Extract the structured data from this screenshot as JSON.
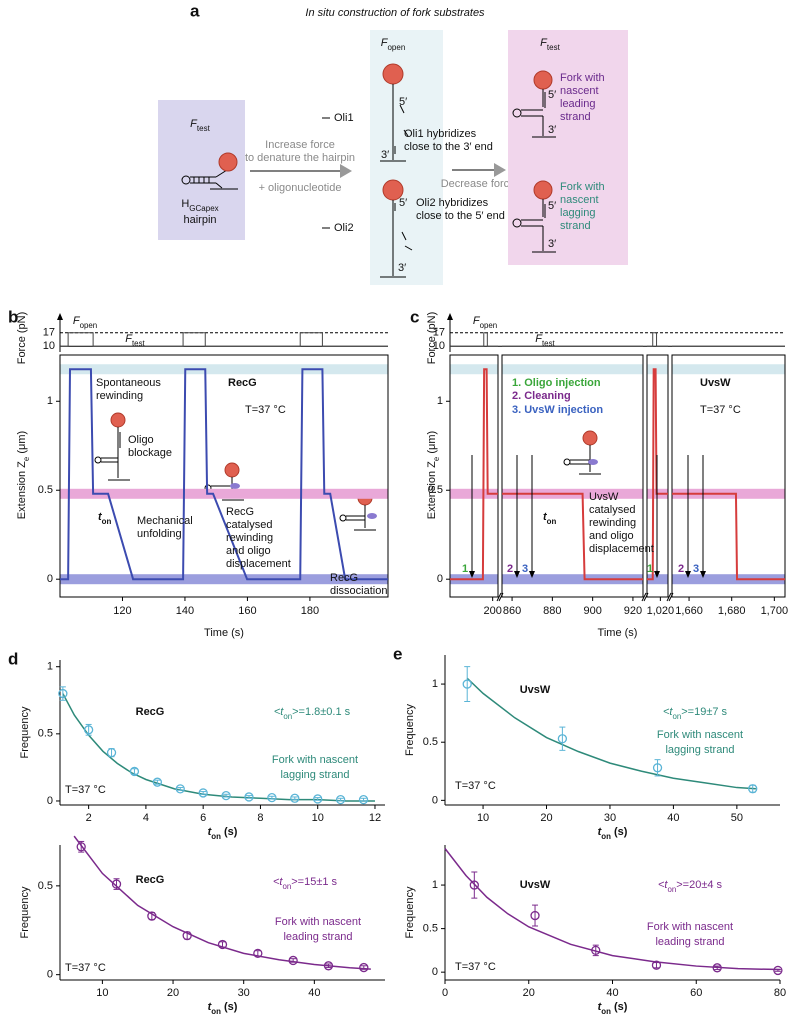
{
  "diagram": {
    "label": "a",
    "title": "In situ construction of fork substrates",
    "box1": {
      "force": {
        "pre": "F",
        "sub": "test"
      },
      "hairpin": {
        "pre": "H",
        "sub": "GCapex"
      },
      "hairpin2": "hairpin"
    },
    "arrow1": [
      "Increase force",
      "to denature the hairpin",
      "+ oligonucleotide"
    ],
    "oli1": "Oli1",
    "oli2": "Oli2",
    "box2": {
      "force": {
        "pre": "F",
        "sub": "open"
      },
      "top5": "5′",
      "top3": "3′",
      "note1": [
        "Oli1 hybridizes",
        "close to the 3′ end"
      ],
      "bot5": "5′",
      "note2": [
        "Oli2 hybridizes",
        "close to the 5′ end"
      ],
      "bot3": "3′"
    },
    "arrow2": "Decrease force",
    "box3": {
      "force": {
        "pre": "F",
        "sub": "test"
      },
      "top5": "5′",
      "top3": "3′",
      "lead": [
        "Fork with",
        "nascent",
        "leading",
        "strand"
      ],
      "bot5": "5′",
      "bot3": "3′",
      "lag": [
        "Fork with",
        "nascent",
        "lagging",
        "strand"
      ]
    }
  },
  "chart_data": [
    {
      "type": "trace",
      "panel": "b",
      "color": "#3c4bb0",
      "force_color": "#444444",
      "force_label": "Force (pN)",
      "ylabel": {
        "pre": "Extension Z",
        "sub": "e",
        "post": " (μm)"
      },
      "xlabel": "Time (s)",
      "ylim": [
        -0.1,
        1.26
      ],
      "yticks": [
        0,
        0.5,
        1
      ],
      "force": {
        "ylim": [
          7,
          21
        ],
        "yticks": [
          10,
          17
        ]
      },
      "bands": [
        {
          "y": 1.18,
          "color": "#d4e8ee"
        },
        {
          "y": 0.48,
          "color": "#e9a8d8"
        },
        {
          "y": 0,
          "color": "#9b9ede"
        }
      ],
      "segments": [
        {
          "xlim": [
            100,
            205
          ],
          "xticks": [
            120,
            140,
            160,
            180
          ],
          "x": [
            100,
            102.6,
            103.2,
            109.9,
            110.6,
            115.4,
            123.4,
            139.4,
            140.1,
            146.5,
            147.1,
            149.0,
            159.9,
            176.9,
            177.6,
            184.0,
            184.6,
            186.5,
            191.3,
            205
          ],
          "values": [
            0,
            0,
            1.18,
            1.18,
            0.48,
            0.48,
            0,
            0,
            1.18,
            1.18,
            0.48,
            0.48,
            0,
            0,
            1.18,
            1.18,
            0.48,
            0.48,
            0,
            0
          ],
          "force_x": [
            100,
            102.6,
            102.6,
            110.6,
            110.6,
            139.4,
            139.4,
            146.5,
            146.5,
            176.9,
            176.9,
            184.0,
            184.0,
            205
          ],
          "force": [
            10,
            10,
            17,
            17,
            10,
            10,
            17,
            17,
            10,
            10,
            17,
            17,
            10,
            10
          ]
        }
      ],
      "annotations": [
        {
          "pre": "F",
          "sub": "open"
        },
        {
          "pre": "F",
          "sub": "test"
        },
        "Spontaneous",
        "rewinding",
        "RecG",
        "T=37 °C",
        "Oligo",
        "blockage",
        {
          "pre": "t",
          "sub": "on"
        },
        "Mechanical",
        "unfolding",
        "RecG",
        "catalysed",
        "rewinding",
        "and oligo",
        "displacement",
        "RecG",
        "dissociation"
      ]
    },
    {
      "type": "trace",
      "panel": "c",
      "color": "#d63c3c",
      "force_color": "#444444",
      "force_label": "Force (pN)",
      "ylabel": {
        "pre": "Extension Z",
        "sub": "e",
        "post": " (μm)"
      },
      "xlabel": "Time (s)",
      "ylim": [
        -0.1,
        1.26
      ],
      "yticks": [
        0,
        0.5,
        1
      ],
      "force": {
        "ylim": [
          7,
          21
        ],
        "yticks": [
          10,
          17
        ]
      },
      "bands": [
        {
          "y": 1.18,
          "color": "#d4e8ee"
        },
        {
          "y": 0.48,
          "color": "#e9a8d8"
        },
        {
          "y": 0,
          "color": "#9b9ede"
        }
      ],
      "segments": [
        {
          "xlim": [
            176,
            203
          ],
          "xticks": [
            200
          ],
          "x": [
            176,
            194.5,
            195.2,
            196.6,
            197.2,
            203
          ],
          "values": [
            0,
            0,
            1.18,
            1.18,
            0.48,
            0.48
          ],
          "force_x": [
            176,
            195,
            195,
            197,
            197,
            203
          ],
          "force": [
            10,
            10,
            17,
            17,
            10,
            10
          ]
        },
        {
          "xlim": [
            855,
            925
          ],
          "xticks": [
            860,
            880,
            900,
            920
          ],
          "x": [
            855,
            895,
            896,
            925
          ],
          "values": [
            0.48,
            0.48,
            0,
            0
          ],
          "force_x": [
            855,
            925
          ],
          "force": [
            10,
            10
          ]
        },
        {
          "xlim": [
            1013,
            1024
          ],
          "xticks": [
            {
              "value": 1020,
              "label": "1,020"
            }
          ],
          "x": [
            1013,
            1016,
            1016.5,
            1017.5,
            1018,
            1024
          ],
          "values": [
            0,
            0,
            1.18,
            1.18,
            0.48,
            0.48
          ],
          "force_x": [
            1013,
            1016,
            1016,
            1018,
            1018,
            1024
          ],
          "force": [
            10,
            10,
            17,
            17,
            10,
            10
          ]
        },
        {
          "xlim": [
            1652,
            1705
          ],
          "xticks": [
            {
              "value": 1660,
              "label": "1,660"
            },
            {
              "value": 1680,
              "label": "1,680"
            },
            {
              "value": 1700,
              "label": "1,700"
            }
          ],
          "x": [
            1652,
            1682,
            1682.5,
            1705
          ],
          "values": [
            0.48,
            0.48,
            0,
            0
          ],
          "force_x": [
            1652,
            1705
          ],
          "force": [
            10,
            10
          ]
        }
      ],
      "events": [
        {
          "label": "1",
          "color": "#3aa63a"
        },
        {
          "label": "2",
          "color": "#7b2a8c"
        },
        {
          "label": "3",
          "color": "#3a62c0"
        },
        {
          "label": "1",
          "color": "#3aa63a"
        },
        {
          "label": "2",
          "color": "#7b2a8c"
        },
        {
          "label": "3",
          "color": "#3a62c0"
        }
      ],
      "annotations": [
        {
          "pre": "F",
          "sub": "open"
        },
        {
          "pre": "F",
          "sub": "test"
        },
        "1. Oligo injection",
        "2. Cleaning",
        "3. UvsW injection",
        "UvsW",
        "T=37 °C",
        {
          "pre": "t",
          "sub": "on"
        },
        "UvsW",
        "catalysed",
        "rewinding",
        "and oligo",
        "displacement"
      ]
    },
    {
      "type": "scatter-fit",
      "panel": "d",
      "name": "RecG",
      "tau": {
        "pre": "<t",
        "sub": "on",
        "post": ">=1.8±0.1 s"
      },
      "fork": [
        "Fork with nascent",
        "lagging strand"
      ],
      "temp": "T=37 °C",
      "xlabel": {
        "pre": "t",
        "sub": "on",
        "post": " (s)"
      },
      "ylabel": "Frequency",
      "color": "#5ab4d6",
      "fit_color": "#2e8a7a",
      "xlim": [
        1,
        12.35
      ],
      "xticks": [
        2,
        4,
        6,
        8,
        10,
        12
      ],
      "ylim": [
        -0.03,
        1.05
      ],
      "yticks": [
        0,
        0.5,
        1
      ],
      "x": [
        1.1,
        2,
        2.8,
        3.6,
        4.4,
        5.2,
        6,
        6.8,
        7.6,
        8.4,
        9.2,
        10,
        10.8,
        11.6
      ],
      "values": [
        0.8,
        0.53,
        0.36,
        0.22,
        0.14,
        0.09,
        0.06,
        0.04,
        0.03,
        0.025,
        0.02,
        0.015,
        0.01,
        0.01
      ],
      "errors": [
        0.05,
        0.04,
        0.03,
        0.02,
        0.015,
        0.01,
        0.01,
        0.01,
        0.01,
        0.01,
        0.01,
        0.01,
        0.01,
        0.01
      ],
      "fit_x": [
        1.1,
        1.5,
        2,
        2.5,
        3,
        3.5,
        4,
        5,
        6,
        7,
        8,
        9,
        10,
        11,
        12
      ],
      "fit_y": [
        0.8,
        0.64,
        0.49,
        0.37,
        0.28,
        0.21,
        0.16,
        0.09,
        0.05,
        0.03,
        0.02,
        0.01,
        0.01,
        0,
        0
      ]
    },
    {
      "type": "scatter-fit",
      "name": "RecG",
      "tau": {
        "pre": "<t",
        "sub": "on",
        "post": ">=15±1 s"
      },
      "fork": [
        "Fork with nascent",
        "leading strand"
      ],
      "temp": "T=37 °C",
      "xlabel": {
        "pre": "t",
        "sub": "on",
        "post": " (s)"
      },
      "ylabel": "Frequency",
      "color": "#7b2a8c",
      "fit_color": "#7b2a8c",
      "xlim": [
        4,
        50
      ],
      "xticks": [
        10,
        20,
        30,
        40
      ],
      "ylim": [
        -0.03,
        0.73
      ],
      "yticks": [
        0,
        0.5
      ],
      "x": [
        7,
        12,
        17,
        22,
        27,
        32,
        37,
        42,
        47
      ],
      "values": [
        0.72,
        0.51,
        0.33,
        0.22,
        0.17,
        0.12,
        0.08,
        0.05,
        0.04
      ],
      "errors": [
        0.03,
        0.03,
        0.02,
        0.02,
        0.015,
        0.015,
        0.01,
        0.01,
        0.01
      ],
      "fit_x": [
        6,
        10,
        15,
        20,
        25,
        30,
        35,
        40,
        45,
        48
      ],
      "fit_y": [
        0.78,
        0.57,
        0.39,
        0.27,
        0.18,
        0.12,
        0.084,
        0.057,
        0.039,
        0.031
      ]
    },
    {
      "type": "scatter-fit",
      "panel": "e",
      "name": "UvsW",
      "tau": {
        "pre": "<t",
        "sub": "on",
        "post": ">=19±7 s"
      },
      "fork": [
        "Fork with nascent",
        "lagging strand"
      ],
      "temp": "T=37 °C",
      "xlabel": {
        "pre": "t",
        "sub": "on",
        "post": " (s)"
      },
      "ylabel": "Frequency",
      "color": "#5ab4d6",
      "fit_color": "#2e8a7a",
      "xlim": [
        4,
        56.8
      ],
      "xticks": [
        10,
        20,
        30,
        40,
        50
      ],
      "ylim": [
        -0.04,
        1.25
      ],
      "yticks": [
        0,
        0.5,
        1
      ],
      "x": [
        7.5,
        22.5,
        37.5,
        52.5
      ],
      "values": [
        1,
        0.53,
        0.28,
        0.1
      ],
      "errors": [
        0.15,
        0.1,
        0.07,
        0.03
      ],
      "fit_x": [
        7.5,
        10,
        15,
        20,
        25,
        30,
        35,
        40,
        45,
        50,
        53
      ],
      "fit_y": [
        1.05,
        0.92,
        0.71,
        0.54,
        0.42,
        0.32,
        0.25,
        0.19,
        0.15,
        0.11,
        0.1
      ]
    },
    {
      "type": "scatter-fit",
      "name": "UvsW",
      "tau": {
        "pre": "<t",
        "sub": "on",
        "post": ">=20±4 s"
      },
      "fork": [
        "Fork with nascent",
        "leading strand"
      ],
      "temp": "T=37 °C",
      "xlabel": {
        "pre": "t",
        "sub": "on",
        "post": " (s)"
      },
      "ylabel": "Frequency",
      "color": "#7b2a8c",
      "fit_color": "#7b2a8c",
      "xlim": [
        0,
        80
      ],
      "xticks": [
        0,
        20,
        40,
        60,
        80
      ],
      "ylim": [
        -0.09,
        1.46
      ],
      "yticks": [
        0,
        0.5,
        1
      ],
      "x": [
        7,
        21.5,
        36,
        50.5,
        65,
        79.5
      ],
      "values": [
        1,
        0.65,
        0.25,
        0.08,
        0.05,
        0.02
      ],
      "errors": [
        0.15,
        0.12,
        0.06,
        0.03,
        0.02,
        0.01
      ],
      "fit_x": [
        0,
        5,
        10,
        15,
        20,
        30,
        40,
        50,
        60,
        70,
        80
      ],
      "fit_y": [
        1.42,
        1.11,
        0.86,
        0.67,
        0.52,
        0.32,
        0.19,
        0.12,
        0.07,
        0.04,
        0.03
      ]
    }
  ]
}
